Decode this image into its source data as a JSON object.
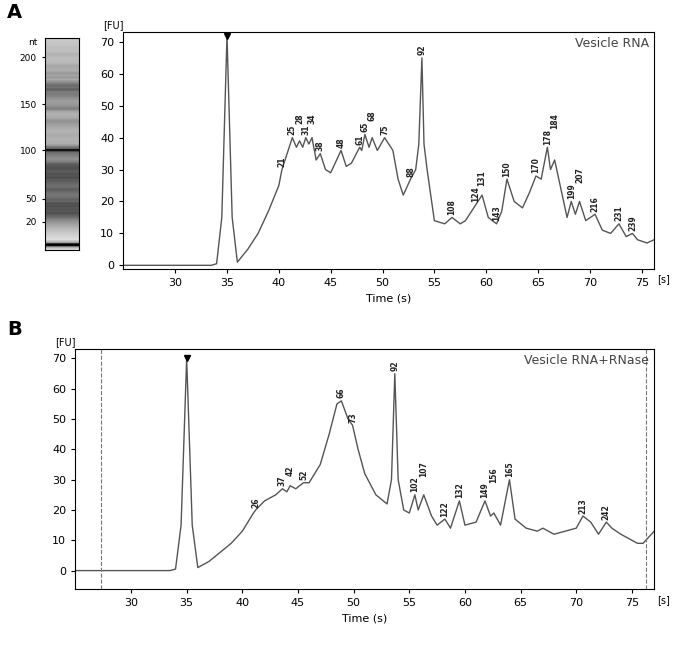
{
  "chart_data": [
    {
      "type": "line",
      "panel": "A",
      "title": "Vesicle RNA",
      "x_label": "Time (s)",
      "x_unit": "[s]",
      "y_label": "[FU]",
      "xlim": [
        25,
        76.2
      ],
      "xticks": [
        30,
        35,
        40,
        45,
        50,
        55,
        60,
        65,
        70,
        75
      ],
      "ylim": [
        -1,
        73
      ],
      "yticks": [
        0,
        10,
        20,
        30,
        40,
        50,
        60,
        70
      ],
      "color": "#555555",
      "x": [
        25,
        30,
        33.5,
        34,
        34.5,
        35,
        35.5,
        36,
        37,
        38,
        39,
        40,
        40.3,
        40.8,
        41.3,
        41.7,
        42,
        42.3,
        42.6,
        42.9,
        43.2,
        43.6,
        44,
        44.5,
        45,
        46,
        46.5,
        47,
        47.8,
        48,
        48.3,
        48.7,
        49,
        49.5,
        50.2,
        51,
        51.5,
        52,
        52.7,
        53.2,
        53.5,
        53.8,
        54,
        54.3,
        55,
        56,
        56.7,
        57.5,
        58,
        59,
        59.6,
        60.2,
        61,
        61.5,
        62,
        62.7,
        63.5,
        64.2,
        64.8,
        65.3,
        65.9,
        66.2,
        66.6,
        67.2,
        67.8,
        68.2,
        68.6,
        69,
        69.6,
        70.5,
        71.2,
        72,
        72.8,
        73.5,
        74.1,
        74.6,
        75.5,
        76.2
      ],
      "values": [
        0,
        0,
        0,
        0.5,
        15,
        72,
        15,
        1,
        5,
        10,
        17,
        25,
        30,
        35,
        40,
        37,
        39,
        37,
        40,
        38,
        40,
        33,
        35,
        30,
        29,
        36,
        31,
        32,
        37,
        36,
        41,
        37,
        40,
        36,
        40,
        36,
        27,
        22,
        27,
        30,
        38,
        65,
        38,
        30,
        14,
        13,
        15,
        13,
        14,
        19,
        22,
        15,
        13,
        17,
        27,
        20,
        18,
        23,
        28,
        27,
        37,
        30,
        33,
        24,
        15,
        20,
        16,
        20,
        14,
        16,
        11,
        10,
        13,
        9,
        10,
        8,
        7,
        8
      ],
      "peak_labels": [
        {
          "x": 40.3,
          "label": "21"
        },
        {
          "x": 41.3,
          "label": "25"
        },
        {
          "x": 42,
          "label": "28"
        },
        {
          "x": 42.6,
          "label": "31"
        },
        {
          "x": 43.2,
          "label": "34"
        },
        {
          "x": 44,
          "label": "38"
        },
        {
          "x": 46,
          "label": "48"
        },
        {
          "x": 47.8,
          "label": "61"
        },
        {
          "x": 48.3,
          "label": "65"
        },
        {
          "x": 49,
          "label": "68"
        },
        {
          "x": 50.2,
          "label": "75"
        },
        {
          "x": 52.7,
          "label": "88"
        },
        {
          "x": 53.8,
          "label": "92"
        },
        {
          "x": 56.7,
          "label": "108"
        },
        {
          "x": 59,
          "label": "124"
        },
        {
          "x": 59.6,
          "label": "131"
        },
        {
          "x": 61,
          "label": "143"
        },
        {
          "x": 62,
          "label": "150"
        },
        {
          "x": 64.8,
          "label": "170"
        },
        {
          "x": 65.9,
          "label": "178"
        },
        {
          "x": 66.6,
          "label": "184"
        },
        {
          "x": 68.2,
          "label": "199"
        },
        {
          "x": 69,
          "label": "207"
        },
        {
          "x": 70.5,
          "label": "216"
        },
        {
          "x": 72.8,
          "label": "231"
        },
        {
          "x": 74.1,
          "label": "239"
        }
      ],
      "gel": {
        "y_label": "nt",
        "ylim": [
          34,
          76
        ],
        "yticks": [
          {
            "value": 39.6,
            "label": "20"
          },
          {
            "value": 44.1,
            "label": "50"
          },
          {
            "value": 53.8,
            "label": "100"
          },
          {
            "value": 62.9,
            "label": "150"
          },
          {
            "value": 72.2,
            "label": "200"
          }
        ]
      }
    },
    {
      "type": "line",
      "panel": "B",
      "title": "Vesicle RNA+RNase",
      "x_label": "Time (s)",
      "x_unit": "[s]",
      "y_label": "[FU]",
      "xlim": [
        25,
        77
      ],
      "xticks": [
        30,
        35,
        40,
        45,
        50,
        55,
        60,
        65,
        70,
        75
      ],
      "ylim": [
        -6,
        73
      ],
      "yticks": [
        0,
        10,
        20,
        30,
        40,
        50,
        60,
        70
      ],
      "color": "#555555",
      "vlines": [
        27.3,
        76.3
      ],
      "x": [
        25,
        30,
        33.5,
        34,
        34.5,
        35,
        35.5,
        36,
        37,
        38,
        39,
        40,
        41,
        41.2,
        42,
        43,
        43.6,
        44,
        44.3,
        44.8,
        45.5,
        46,
        47,
        47.8,
        48.5,
        48.9,
        49.5,
        49.9,
        50.4,
        51,
        52,
        53,
        53.4,
        53.7,
        54,
        54.5,
        55,
        55.5,
        55.8,
        56.3,
        57,
        57.5,
        58.2,
        58.7,
        59.5,
        60,
        61,
        61.8,
        62.3,
        62.6,
        63.2,
        64,
        64.5,
        65.5,
        66.5,
        67,
        68,
        69,
        70,
        70.6,
        71.3,
        72,
        72.7,
        73.2,
        74,
        75,
        75.5,
        76,
        76.5,
        77
      ],
      "values": [
        0,
        0,
        0,
        0.5,
        15,
        70,
        15,
        1,
        3,
        6,
        9,
        13,
        19,
        20,
        23,
        25,
        27,
        26,
        28,
        27,
        29,
        29,
        35,
        45,
        55,
        56,
        50,
        48,
        40,
        32,
        25,
        22,
        30,
        65,
        30,
        20,
        19,
        25,
        20,
        25,
        18,
        15,
        17,
        14,
        23,
        15,
        16,
        23,
        18,
        19,
        15,
        30,
        17,
        14,
        13,
        14,
        12,
        13,
        14,
        18,
        16,
        12,
        16,
        14,
        12,
        10,
        9,
        9,
        11,
        13
      ],
      "peak_labels": [
        {
          "x": 41.2,
          "label": "26"
        },
        {
          "x": 43.6,
          "label": "37"
        },
        {
          "x": 44.3,
          "label": "42"
        },
        {
          "x": 45.5,
          "label": "52"
        },
        {
          "x": 48.9,
          "label": "66"
        },
        {
          "x": 49.9,
          "label": "73"
        },
        {
          "x": 53.7,
          "label": "92"
        },
        {
          "x": 55.5,
          "label": "102"
        },
        {
          "x": 56.3,
          "label": "107"
        },
        {
          "x": 58.2,
          "label": "122"
        },
        {
          "x": 59.5,
          "label": "132"
        },
        {
          "x": 61.8,
          "label": "149"
        },
        {
          "x": 62.6,
          "label": "156"
        },
        {
          "x": 64,
          "label": "165"
        },
        {
          "x": 70.6,
          "label": "213"
        },
        {
          "x": 72.7,
          "label": "242"
        }
      ]
    }
  ]
}
